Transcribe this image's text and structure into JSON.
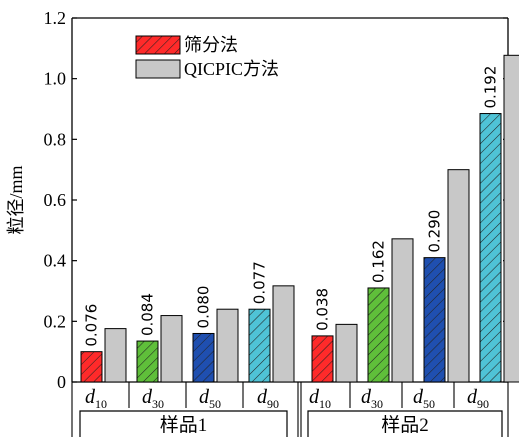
{
  "chart_data": {
    "type": "bar",
    "ylabel": "粒径/mm",
    "ylim": [
      0,
      1.2
    ],
    "yticks": [
      "0",
      "0.2",
      "0.4",
      "0.6",
      "0.8",
      "1.0",
      "1.2"
    ],
    "legend_position": "top-left",
    "groups": [
      {
        "label": "样品1",
        "categories": [
          {
            "main": "d",
            "sub": "10"
          },
          {
            "main": "d",
            "sub": "30"
          },
          {
            "main": "d",
            "sub": "50"
          },
          {
            "main": "d",
            "sub": "90"
          }
        ]
      },
      {
        "label": "样品2",
        "categories": [
          {
            "main": "d",
            "sub": "10"
          },
          {
            "main": "d",
            "sub": "30"
          },
          {
            "main": "d",
            "sub": "50"
          },
          {
            "main": "d",
            "sub": "90"
          }
        ]
      }
    ],
    "series": [
      {
        "name": "筛分法",
        "hatched": true,
        "colors": [
          "#ff2a2a",
          "#5fbf3a",
          "#1f4fb0",
          "#4fc3d6",
          "#ff2a2a",
          "#5fbf3a",
          "#1f4fb0",
          "#4fc3d6"
        ],
        "values": [
          0.1,
          0.135,
          0.16,
          0.24,
          0.152,
          0.31,
          0.41,
          0.885
        ]
      },
      {
        "name": "QICPIC方法",
        "hatched": false,
        "color": "#c8c8c8",
        "values": [
          0.176,
          0.219,
          0.24,
          0.317,
          0.19,
          0.472,
          0.7,
          1.077
        ]
      }
    ],
    "bar_labels": [
      "0.076",
      "0.084",
      "0.080",
      "0.077",
      "0.038",
      "0.162",
      "0.290",
      "0.192"
    ]
  }
}
